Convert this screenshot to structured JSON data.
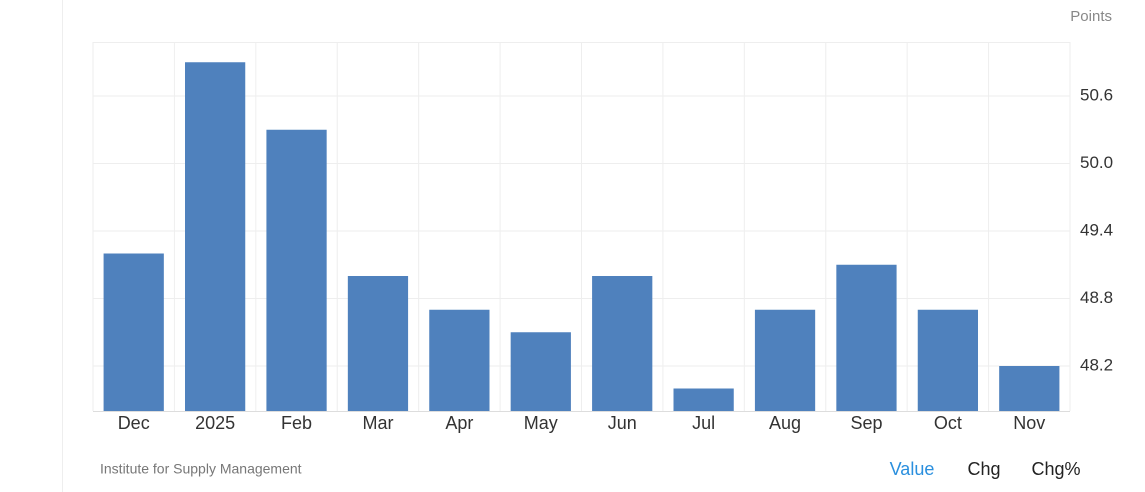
{
  "chart_data": {
    "type": "bar",
    "y_label": "Points",
    "source": "Institute for Supply Management",
    "buttons": [
      "Value",
      "Chg",
      "Chg%"
    ],
    "categories": [
      "Dec",
      "2025",
      "Feb",
      "Mar",
      "Apr",
      "May",
      "Jun",
      "Jul",
      "Aug",
      "Sep",
      "Oct",
      "Nov"
    ],
    "values": [
      49.2,
      50.9,
      50.3,
      49.0,
      48.7,
      48.5,
      49.0,
      48.0,
      48.7,
      49.1,
      48.7,
      48.2
    ],
    "color": "#4f81bd",
    "ylim": [
      47.8,
      51.08
    ],
    "yticks": [
      48.2,
      48.8,
      49.4,
      {
        "value": 50,
        "label": "50.0"
      },
      50.6
    ],
    "grid": true
  }
}
